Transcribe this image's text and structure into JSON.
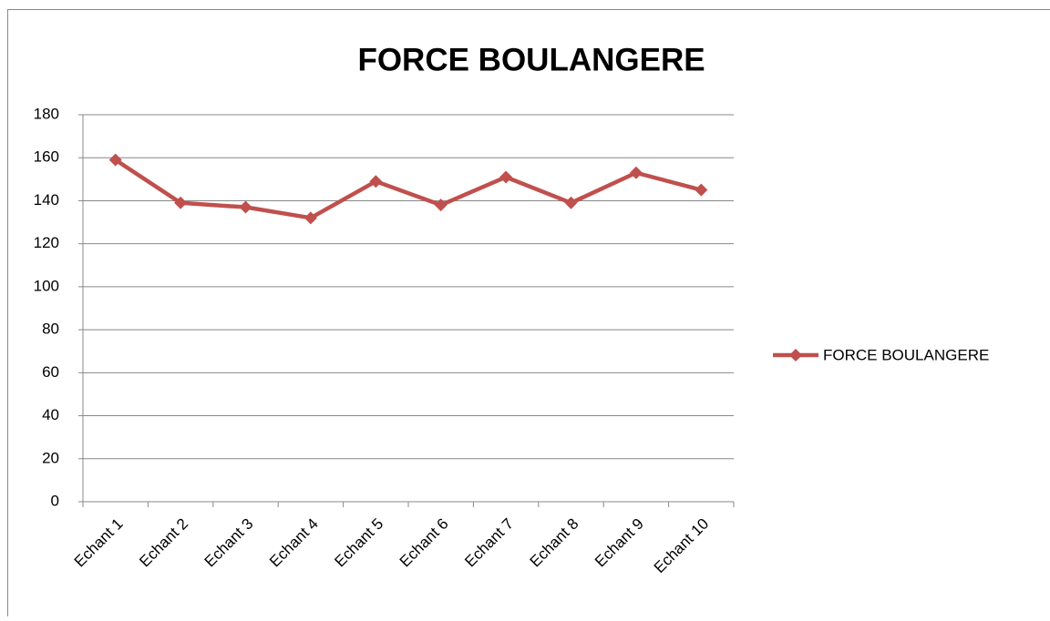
{
  "chart_data": {
    "type": "line",
    "title": "FORCE BOULANGERE",
    "categories": [
      "Echant 1",
      "Echant 2",
      "Echant 3",
      "Echant 4",
      "Echant 5",
      "Echant 6",
      "Echant 7",
      "Echant 8",
      "Echant 9",
      "Echant 10"
    ],
    "series": [
      {
        "name": "FORCE BOULANGERE",
        "color": "#c0504d",
        "values": [
          159,
          139,
          137,
          132,
          149,
          138,
          151,
          139,
          153,
          145
        ]
      }
    ],
    "ylim": [
      0,
      180
    ],
    "yticks": [
      0,
      20,
      40,
      60,
      80,
      100,
      120,
      140,
      160,
      180
    ],
    "grid": true,
    "legend": "right"
  }
}
